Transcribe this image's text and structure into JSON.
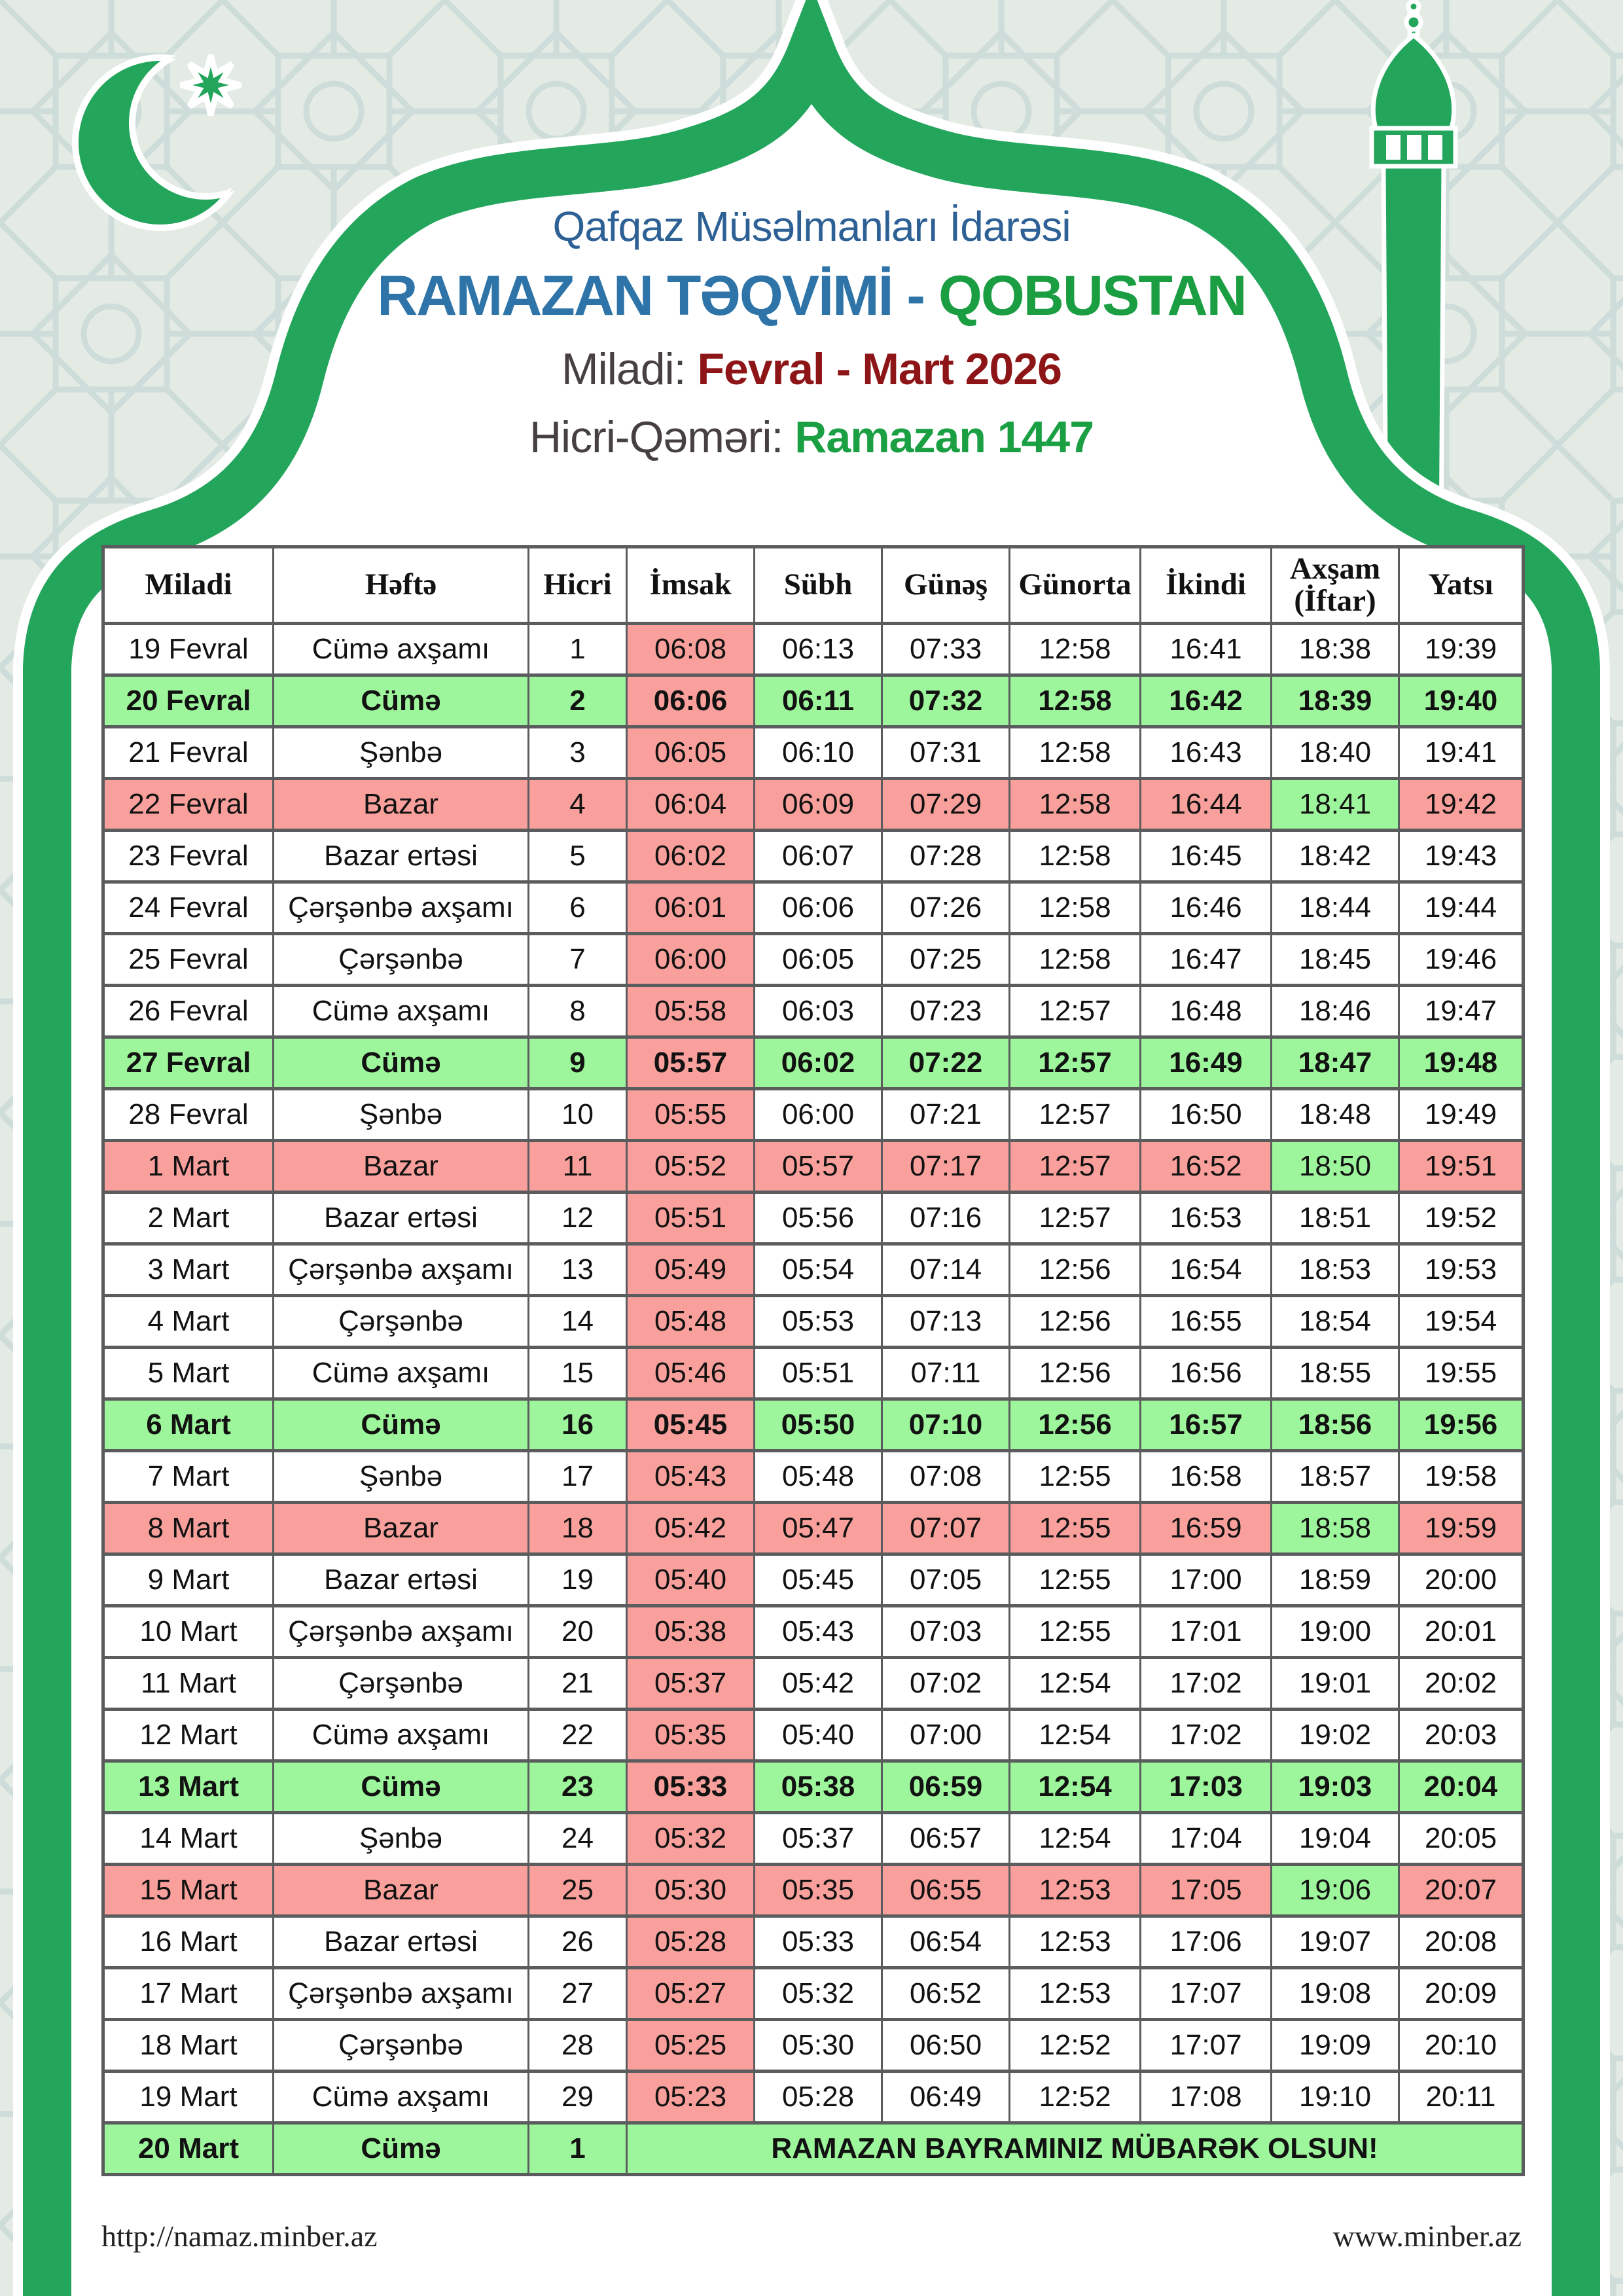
{
  "header": {
    "org": "Qafqaz Müsəlmanları İdarəsi",
    "title_main": "RAMAZAN TƏQVİMİ -",
    "title_location": "QOBUSTAN",
    "miladi_label": "Miladi:",
    "miladi_value": "Fevral - Mart 2026",
    "hicri_label": "Hicri-Qəməri:",
    "hicri_value": "Ramazan 1447"
  },
  "table": {
    "columns": [
      "Miladi",
      "Həftə",
      "Hicri",
      "İmsak",
      "Sübh",
      "Günəş",
      "Günorta",
      "İkindi",
      "Axşam (İftar)",
      "Yatsı"
    ],
    "rows": [
      {
        "type": "normal",
        "miladi": "19 Fevral",
        "hefte": "Cümə axşamı",
        "hicri": "1",
        "imsak": "06:08",
        "subh": "06:13",
        "gunes": "07:33",
        "gunorta": "12:58",
        "ikindi": "16:41",
        "aksam": "18:38",
        "yatsi": "19:39"
      },
      {
        "type": "friday",
        "miladi": "20 Fevral",
        "hefte": "Cümə",
        "hicri": "2",
        "imsak": "06:06",
        "subh": "06:11",
        "gunes": "07:32",
        "gunorta": "12:58",
        "ikindi": "16:42",
        "aksam": "18:39",
        "yatsi": "19:40"
      },
      {
        "type": "normal",
        "miladi": "21 Fevral",
        "hefte": "Şənbə",
        "hicri": "3",
        "imsak": "06:05",
        "subh": "06:10",
        "gunes": "07:31",
        "gunorta": "12:58",
        "ikindi": "16:43",
        "aksam": "18:40",
        "yatsi": "19:41"
      },
      {
        "type": "sunday",
        "miladi": "22 Fevral",
        "hefte": "Bazar",
        "hicri": "4",
        "imsak": "06:04",
        "subh": "06:09",
        "gunes": "07:29",
        "gunorta": "12:58",
        "ikindi": "16:44",
        "aksam": "18:41",
        "yatsi": "19:42"
      },
      {
        "type": "normal",
        "miladi": "23 Fevral",
        "hefte": "Bazar ertəsi",
        "hicri": "5",
        "imsak": "06:02",
        "subh": "06:07",
        "gunes": "07:28",
        "gunorta": "12:58",
        "ikindi": "16:45",
        "aksam": "18:42",
        "yatsi": "19:43"
      },
      {
        "type": "normal",
        "miladi": "24 Fevral",
        "hefte": "Çərşənbə axşamı",
        "hicri": "6",
        "imsak": "06:01",
        "subh": "06:06",
        "gunes": "07:26",
        "gunorta": "12:58",
        "ikindi": "16:46",
        "aksam": "18:44",
        "yatsi": "19:44"
      },
      {
        "type": "normal",
        "miladi": "25 Fevral",
        "hefte": "Çərşənbə",
        "hicri": "7",
        "imsak": "06:00",
        "subh": "06:05",
        "gunes": "07:25",
        "gunorta": "12:58",
        "ikindi": "16:47",
        "aksam": "18:45",
        "yatsi": "19:46"
      },
      {
        "type": "normal",
        "miladi": "26 Fevral",
        "hefte": "Cümə axşamı",
        "hicri": "8",
        "imsak": "05:58",
        "subh": "06:03",
        "gunes": "07:23",
        "gunorta": "12:57",
        "ikindi": "16:48",
        "aksam": "18:46",
        "yatsi": "19:47"
      },
      {
        "type": "friday",
        "miladi": "27 Fevral",
        "hefte": "Cümə",
        "hicri": "9",
        "imsak": "05:57",
        "subh": "06:02",
        "gunes": "07:22",
        "gunorta": "12:57",
        "ikindi": "16:49",
        "aksam": "18:47",
        "yatsi": "19:48"
      },
      {
        "type": "normal",
        "miladi": "28 Fevral",
        "hefte": "Şənbə",
        "hicri": "10",
        "imsak": "05:55",
        "subh": "06:00",
        "gunes": "07:21",
        "gunorta": "12:57",
        "ikindi": "16:50",
        "aksam": "18:48",
        "yatsi": "19:49"
      },
      {
        "type": "sunday",
        "miladi": "1 Mart",
        "hefte": "Bazar",
        "hicri": "11",
        "imsak": "05:52",
        "subh": "05:57",
        "gunes": "07:17",
        "gunorta": "12:57",
        "ikindi": "16:52",
        "aksam": "18:50",
        "yatsi": "19:51"
      },
      {
        "type": "normal",
        "miladi": "2 Mart",
        "hefte": "Bazar ertəsi",
        "hicri": "12",
        "imsak": "05:51",
        "subh": "05:56",
        "gunes": "07:16",
        "gunorta": "12:57",
        "ikindi": "16:53",
        "aksam": "18:51",
        "yatsi": "19:52"
      },
      {
        "type": "normal",
        "miladi": "3 Mart",
        "hefte": "Çərşənbə axşamı",
        "hicri": "13",
        "imsak": "05:49",
        "subh": "05:54",
        "gunes": "07:14",
        "gunorta": "12:56",
        "ikindi": "16:54",
        "aksam": "18:53",
        "yatsi": "19:53"
      },
      {
        "type": "normal",
        "miladi": "4 Mart",
        "hefte": "Çərşənbə",
        "hicri": "14",
        "imsak": "05:48",
        "subh": "05:53",
        "gunes": "07:13",
        "gunorta": "12:56",
        "ikindi": "16:55",
        "aksam": "18:54",
        "yatsi": "19:54"
      },
      {
        "type": "normal",
        "miladi": "5 Mart",
        "hefte": "Cümə axşamı",
        "hicri": "15",
        "imsak": "05:46",
        "subh": "05:51",
        "gunes": "07:11",
        "gunorta": "12:56",
        "ikindi": "16:56",
        "aksam": "18:55",
        "yatsi": "19:55"
      },
      {
        "type": "friday",
        "miladi": "6 Mart",
        "hefte": "Cümə",
        "hicri": "16",
        "imsak": "05:45",
        "subh": "05:50",
        "gunes": "07:10",
        "gunorta": "12:56",
        "ikindi": "16:57",
        "aksam": "18:56",
        "yatsi": "19:56"
      },
      {
        "type": "normal",
        "miladi": "7 Mart",
        "hefte": "Şənbə",
        "hicri": "17",
        "imsak": "05:43",
        "subh": "05:48",
        "gunes": "07:08",
        "gunorta": "12:55",
        "ikindi": "16:58",
        "aksam": "18:57",
        "yatsi": "19:58"
      },
      {
        "type": "sunday",
        "miladi": "8 Mart",
        "hefte": "Bazar",
        "hicri": "18",
        "imsak": "05:42",
        "subh": "05:47",
        "gunes": "07:07",
        "gunorta": "12:55",
        "ikindi": "16:59",
        "aksam": "18:58",
        "yatsi": "19:59"
      },
      {
        "type": "normal",
        "miladi": "9 Mart",
        "hefte": "Bazar ertəsi",
        "hicri": "19",
        "imsak": "05:40",
        "subh": "05:45",
        "gunes": "07:05",
        "gunorta": "12:55",
        "ikindi": "17:00",
        "aksam": "18:59",
        "yatsi": "20:00"
      },
      {
        "type": "normal",
        "miladi": "10 Mart",
        "hefte": "Çərşənbə axşamı",
        "hicri": "20",
        "imsak": "05:38",
        "subh": "05:43",
        "gunes": "07:03",
        "gunorta": "12:55",
        "ikindi": "17:01",
        "aksam": "19:00",
        "yatsi": "20:01"
      },
      {
        "type": "normal",
        "miladi": "11 Mart",
        "hefte": "Çərşənbə",
        "hicri": "21",
        "imsak": "05:37",
        "subh": "05:42",
        "gunes": "07:02",
        "gunorta": "12:54",
        "ikindi": "17:02",
        "aksam": "19:01",
        "yatsi": "20:02"
      },
      {
        "type": "normal",
        "miladi": "12 Mart",
        "hefte": "Cümə axşamı",
        "hicri": "22",
        "imsak": "05:35",
        "subh": "05:40",
        "gunes": "07:00",
        "gunorta": "12:54",
        "ikindi": "17:02",
        "aksam": "19:02",
        "yatsi": "20:03"
      },
      {
        "type": "friday",
        "miladi": "13 Mart",
        "hefte": "Cümə",
        "hicri": "23",
        "imsak": "05:33",
        "subh": "05:38",
        "gunes": "06:59",
        "gunorta": "12:54",
        "ikindi": "17:03",
        "aksam": "19:03",
        "yatsi": "20:04"
      },
      {
        "type": "normal",
        "miladi": "14 Mart",
        "hefte": "Şənbə",
        "hicri": "24",
        "imsak": "05:32",
        "subh": "05:37",
        "gunes": "06:57",
        "gunorta": "12:54",
        "ikindi": "17:04",
        "aksam": "19:04",
        "yatsi": "20:05"
      },
      {
        "type": "sunday",
        "miladi": "15 Mart",
        "hefte": "Bazar",
        "hicri": "25",
        "imsak": "05:30",
        "subh": "05:35",
        "gunes": "06:55",
        "gunorta": "12:53",
        "ikindi": "17:05",
        "aksam": "19:06",
        "yatsi": "20:07"
      },
      {
        "type": "normal",
        "miladi": "16 Mart",
        "hefte": "Bazar ertəsi",
        "hicri": "26",
        "imsak": "05:28",
        "subh": "05:33",
        "gunes": "06:54",
        "gunorta": "12:53",
        "ikindi": "17:06",
        "aksam": "19:07",
        "yatsi": "20:08"
      },
      {
        "type": "normal",
        "miladi": "17 Mart",
        "hefte": "Çərşənbə axşamı",
        "hicri": "27",
        "imsak": "05:27",
        "subh": "05:32",
        "gunes": "06:52",
        "gunorta": "12:53",
        "ikindi": "17:07",
        "aksam": "19:08",
        "yatsi": "20:09"
      },
      {
        "type": "normal",
        "miladi": "18 Mart",
        "hefte": "Çərşənbə",
        "hicri": "28",
        "imsak": "05:25",
        "subh": "05:30",
        "gunes": "06:50",
        "gunorta": "12:52",
        "ikindi": "17:07",
        "aksam": "19:09",
        "yatsi": "20:10"
      },
      {
        "type": "normal",
        "miladi": "19 Mart",
        "hefte": "Cümə axşamı",
        "hicri": "29",
        "imsak": "05:23",
        "subh": "05:28",
        "gunes": "06:49",
        "gunorta": "12:52",
        "ikindi": "17:08",
        "aksam": "19:10",
        "yatsi": "20:11"
      },
      {
        "type": "bayram",
        "miladi": "20 Mart",
        "hefte": "Cümə",
        "hicri": "1",
        "message": "RAMAZAN BAYRAMINIZ MÜBARƏK OLSUN!"
      }
    ]
  },
  "footer": {
    "left": "http://namaz.minber.az",
    "right": "www.minber.az"
  },
  "colors": {
    "frame_green": "#23a65c",
    "row_green": "#9ef69c",
    "row_pink": "#f9a09c",
    "border_gray": "#5b5c5e",
    "org_blue": "#2d6094",
    "title_blue": "#2e74a8",
    "location_green": "#1a9e41",
    "date_red": "#8e1517",
    "label_dark": "#474043",
    "hicri_green": "#1aa042",
    "cell_text": "#121212",
    "footer_text": "#222222",
    "background": "#e3ebe4",
    "pattern_line": "#b9cdd0"
  }
}
